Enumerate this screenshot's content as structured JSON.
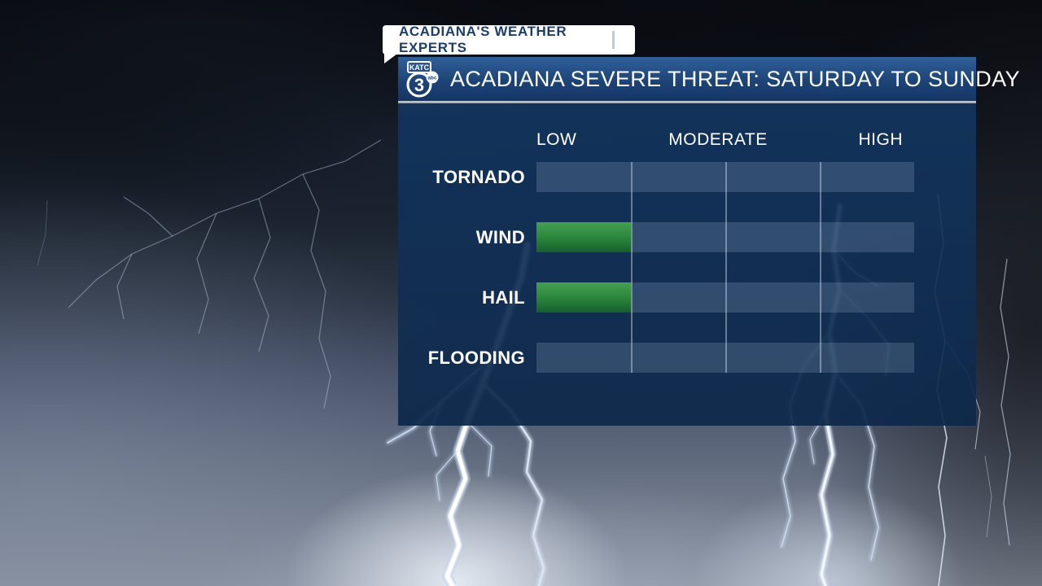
{
  "tag": {
    "label": "ACADIANA'S WEATHER EXPERTS"
  },
  "header": {
    "title": "ACADIANA SEVERE THREAT: SATURDAY TO SUNDAY",
    "logo": {
      "station": "KATC",
      "channel": "3",
      "network": "abc"
    }
  },
  "chart_data": {
    "type": "bar",
    "title": "ACADIANA SEVERE THREAT: SATURDAY TO SUNDAY",
    "categories": [
      "TORNADO",
      "WIND",
      "HAIL",
      "FLOODING"
    ],
    "values": [
      0,
      1,
      1,
      0
    ],
    "value_scale": "filled track segments out of 4; 1 segment = LOW level",
    "segments_per_row": 4,
    "scale_labels": [
      "LOW",
      "MODERATE",
      "HIGH"
    ],
    "legend_position": "top",
    "grid": true,
    "bar_color": "#2f8a3f",
    "track_color": "#2c4b73"
  },
  "colors": {
    "panel_header_blue": "#27548b",
    "panel_body_navy": "#123159",
    "track_blue": "#2c4b73",
    "bar_green": "#2f8a3f",
    "divider_gray": "#b9c0c8",
    "tag_text_navy": "#1c3e6d",
    "text_white": "#ffffff"
  }
}
